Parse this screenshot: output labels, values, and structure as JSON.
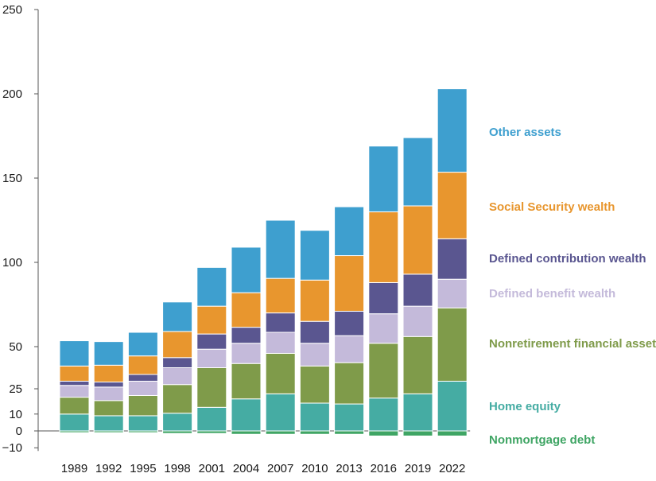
{
  "chart_data": {
    "type": "bar",
    "stacked": true,
    "categories": [
      "1989",
      "1992",
      "1995",
      "1998",
      "2001",
      "2004",
      "2007",
      "2010",
      "2013",
      "2016",
      "2019",
      "2022"
    ],
    "yticks": [
      -10,
      0,
      10,
      25,
      50,
      100,
      150,
      200,
      250
    ],
    "ylim": [
      -10,
      250
    ],
    "grid": false,
    "legend_placement": "right",
    "series": [
      {
        "name": "Nonmortgage debt",
        "color": "#3fa564",
        "values": [
          -1,
          -1,
          -1,
          -1.5,
          -1.5,
          -2,
          -2,
          -2,
          -2,
          -3,
          -3,
          -3
        ]
      },
      {
        "name": "Home equity",
        "color": "#45aca3",
        "values": [
          10,
          9,
          9,
          10.5,
          14,
          19,
          22,
          16.5,
          16,
          19.5,
          22,
          29.5
        ]
      },
      {
        "name": "Nonretirement financial assets",
        "color": "#7f9b4a",
        "values": [
          10,
          9,
          12,
          17,
          23.5,
          21,
          24,
          22,
          24.5,
          32.5,
          34,
          43.5
        ]
      },
      {
        "name": "Defined benefit wealth",
        "color": "#c4bada",
        "values": [
          7,
          8,
          8.5,
          10,
          11,
          12,
          12.5,
          13.5,
          16,
          17.5,
          18,
          17
        ]
      },
      {
        "name": "Defined contribution wealth",
        "color": "#5a5690",
        "values": [
          2.5,
          3,
          4,
          6,
          9,
          9.5,
          11.5,
          13,
          14.5,
          18.5,
          19,
          24
        ]
      },
      {
        "name": "Social Security wealth",
        "color": "#e8962e",
        "values": [
          9,
          10,
          11,
          15.5,
          16.5,
          20.5,
          20.5,
          24.5,
          33,
          42,
          40.5,
          39.5
        ]
      },
      {
        "name": "Other assets",
        "color": "#3e9fcf",
        "values": [
          15,
          14,
          14,
          17.5,
          23,
          27,
          34.5,
          29.5,
          29,
          39,
          40.5,
          49.5
        ]
      }
    ]
  }
}
